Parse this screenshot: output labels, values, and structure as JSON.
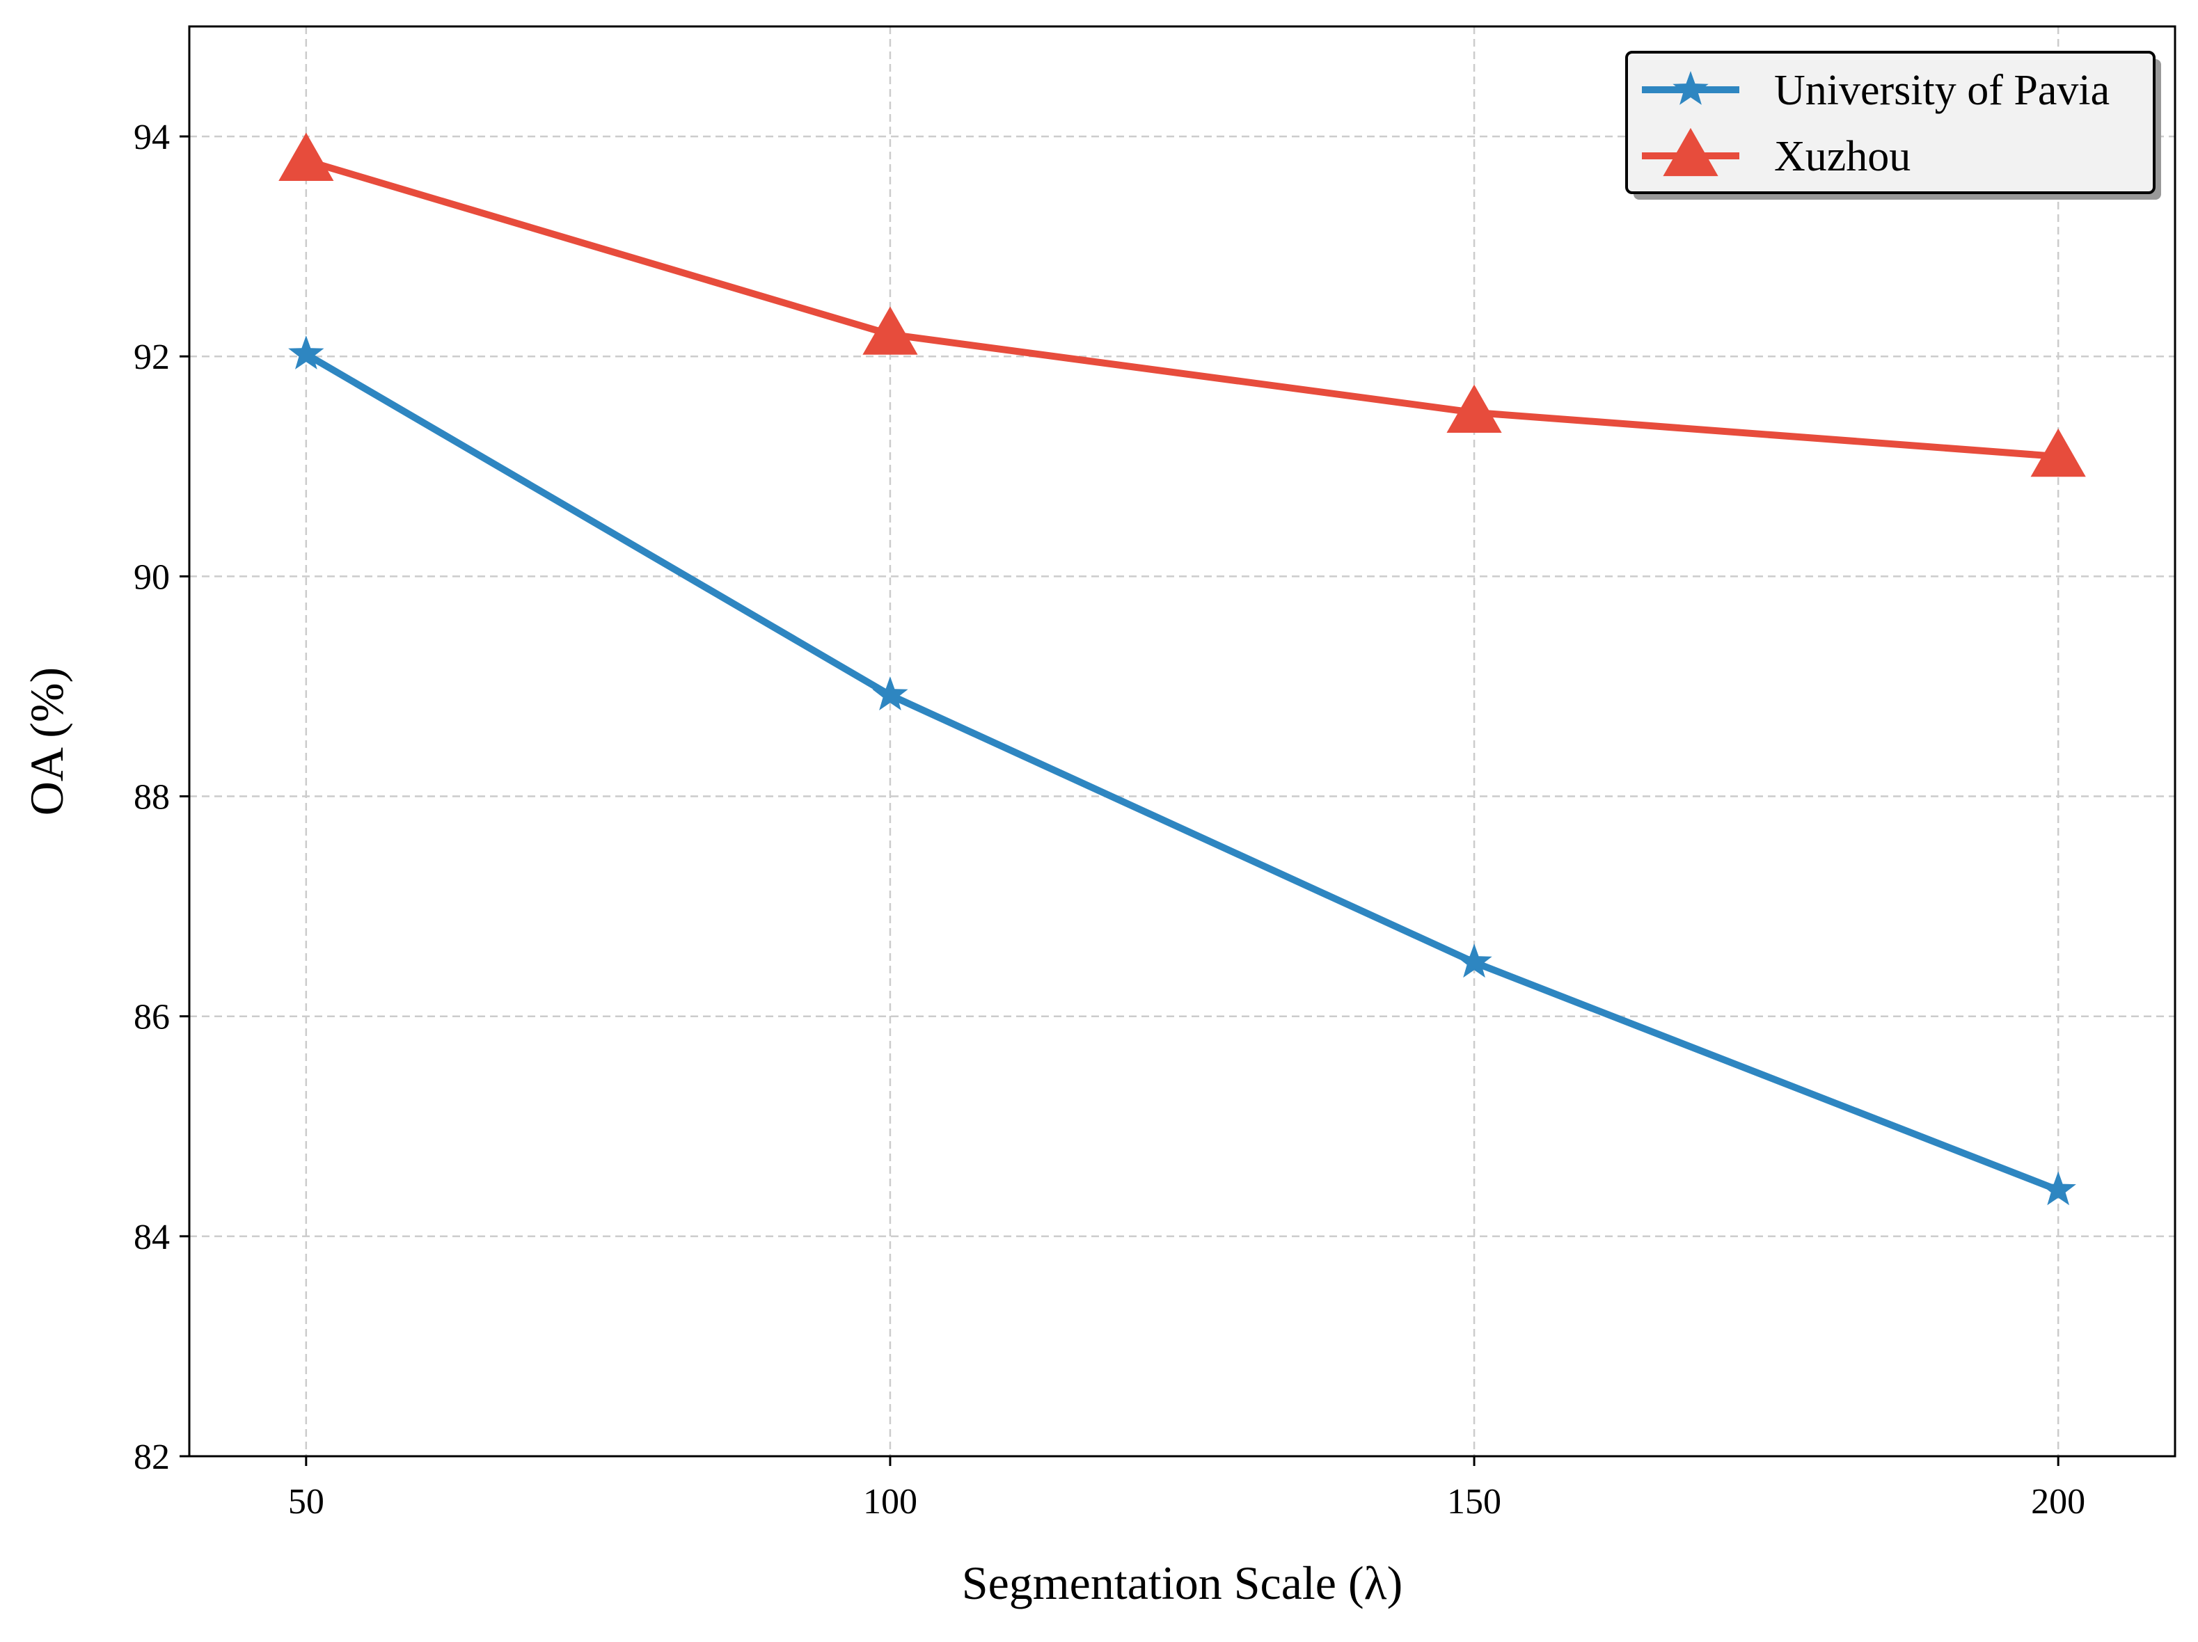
{
  "chart_data": {
    "type": "line",
    "title": "",
    "xlabel": "Segmentation Scale (λ)",
    "ylabel": "OA (%)",
    "x": [
      50,
      100,
      150,
      200
    ],
    "xlim": [
      40,
      210
    ],
    "ylim": [
      82,
      95
    ],
    "xticks": [
      50,
      100,
      150,
      200
    ],
    "yticks": [
      82,
      84,
      86,
      88,
      90,
      92,
      94
    ],
    "grid": true,
    "legend_position": "top-right",
    "series": [
      {
        "name": "University of Pavia",
        "values": [
          92.02,
          88.92,
          86.49,
          84.42
        ],
        "color": "#2e86c1",
        "marker": "star"
      },
      {
        "name": "Xuzhou",
        "values": [
          93.78,
          92.2,
          91.49,
          91.09
        ],
        "color": "#e74c3c",
        "marker": "triangle"
      }
    ]
  }
}
